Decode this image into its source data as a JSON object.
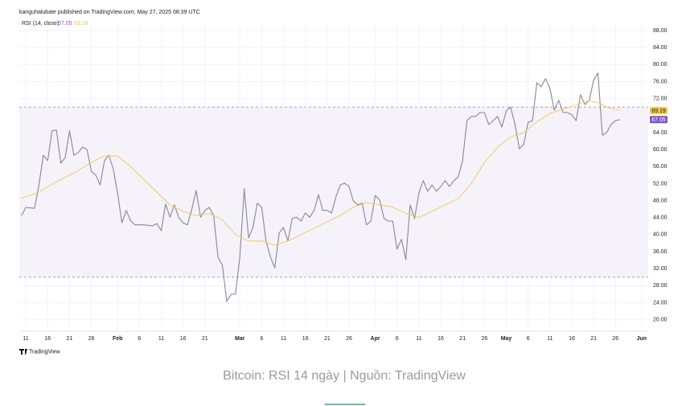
{
  "header": "kanguhalubate published on TradingView.com, May 27, 2025 08:39 UTC",
  "logo": "TradingView",
  "caption": "Bitcoin: RSI 14 ngày | Nguồn: TradingView",
  "chart_data": {
    "type": "line",
    "indicator": "RSI (14, close)",
    "xlim": [
      9.5,
      153.5
    ],
    "ylim": [
      17.3,
      89.5
    ],
    "levels": [
      70,
      30
    ],
    "grid": true,
    "xticks": [
      {
        "value": 11,
        "label": "11"
      },
      {
        "value": 16,
        "label": "16"
      },
      {
        "value": 21,
        "label": "21"
      },
      {
        "value": 26,
        "label": "26"
      },
      {
        "value": 32,
        "label": "Feb"
      },
      {
        "value": 37,
        "label": "6"
      },
      {
        "value": 42,
        "label": "11"
      },
      {
        "value": 47,
        "label": "16"
      },
      {
        "value": 52,
        "label": "21"
      },
      {
        "value": 60,
        "label": "Mar"
      },
      {
        "value": 65,
        "label": "6"
      },
      {
        "value": 70,
        "label": "11"
      },
      {
        "value": 75,
        "label": "16"
      },
      {
        "value": 80,
        "label": "21"
      },
      {
        "value": 85,
        "label": "26"
      },
      {
        "value": 91,
        "label": "Apr"
      },
      {
        "value": 96,
        "label": "6"
      },
      {
        "value": 101,
        "label": "11"
      },
      {
        "value": 106,
        "label": "16"
      },
      {
        "value": 111,
        "label": "21"
      },
      {
        "value": 116,
        "label": "26"
      },
      {
        "value": 121,
        "label": "May"
      },
      {
        "value": 126,
        "label": "6"
      },
      {
        "value": 131,
        "label": "11"
      },
      {
        "value": 136,
        "label": "16"
      },
      {
        "value": 141,
        "label": "21"
      },
      {
        "value": 146,
        "label": "26"
      },
      {
        "value": 152,
        "label": "Jun"
      }
    ],
    "yticks": [
      {
        "value": 20,
        "label": "20.00"
      },
      {
        "value": 24,
        "label": "24.00"
      },
      {
        "value": 28,
        "label": "28.00"
      },
      {
        "value": 32,
        "label": "32.00"
      },
      {
        "value": 36,
        "label": "36.00"
      },
      {
        "value": 40,
        "label": "40.00"
      },
      {
        "value": 44,
        "label": "44.00"
      },
      {
        "value": 48,
        "label": "48.00"
      },
      {
        "value": 52,
        "label": "52.00"
      },
      {
        "value": 56,
        "label": "56.00"
      },
      {
        "value": 60,
        "label": "60.00"
      },
      {
        "value": 64,
        "label": "64.00"
      },
      {
        "value": 72,
        "label": "72.00"
      },
      {
        "value": 76,
        "label": "76.00"
      },
      {
        "value": 80,
        "label": "80.00"
      },
      {
        "value": 84,
        "label": "84.00"
      },
      {
        "value": 88,
        "label": "88.00"
      }
    ],
    "series": [
      {
        "color": "#8a8599",
        "x": [
          10,
          11,
          13,
          14,
          15,
          16,
          17,
          18,
          19,
          20,
          21,
          22,
          23,
          24,
          25,
          26,
          27,
          28,
          29,
          30,
          31,
          32,
          33,
          34,
          35,
          36,
          38,
          40,
          41,
          42,
          43,
          44,
          45,
          46,
          47,
          48,
          49,
          50,
          51,
          52,
          53,
          54,
          55,
          56,
          57,
          58,
          59,
          60,
          61,
          62,
          63,
          64,
          65,
          66,
          67,
          68,
          69,
          70,
          71,
          72,
          73,
          74,
          75,
          76,
          77,
          78,
          79,
          80,
          81,
          82,
          83,
          84,
          85,
          86,
          87,
          88,
          89,
          90,
          91,
          92,
          93,
          94,
          95,
          96,
          97,
          98,
          99,
          100,
          101,
          102,
          103,
          104,
          105,
          106,
          107,
          108,
          109,
          110,
          111,
          112,
          113,
          114,
          115,
          116,
          117,
          118,
          119,
          120,
          121,
          122,
          123,
          124,
          125,
          126,
          127,
          128,
          129,
          130,
          131,
          132,
          133,
          134,
          135,
          136,
          137,
          138,
          139,
          140,
          141,
          142,
          143,
          144,
          145,
          146,
          147
        ],
        "values": [
          44.5,
          46.4,
          46.2,
          51.7,
          58.7,
          57.4,
          64.4,
          64.6,
          56.8,
          58.1,
          64.4,
          58.7,
          59.3,
          60.6,
          60,
          54.9,
          54,
          51.7,
          57.4,
          58.7,
          55.5,
          49.8,
          42.8,
          45.7,
          43.2,
          42.3,
          42.3,
          42.1,
          42.6,
          40.9,
          47.2,
          44.1,
          47,
          44.1,
          42.8,
          42.3,
          46,
          50.4,
          44.1,
          45.7,
          46.4,
          44.5,
          34.7,
          32.8,
          24.3,
          26,
          26,
          34.7,
          50.8,
          39.2,
          41.7,
          47.4,
          46.4,
          38.5,
          34.7,
          32.2,
          40.4,
          41.7,
          38.5,
          43.8,
          44.1,
          43.2,
          45.1,
          44.1,
          45.7,
          49.4,
          45.7,
          45.7,
          45.1,
          48.9,
          51.7,
          52.1,
          51.3,
          47.9,
          47,
          47.4,
          42.3,
          43.2,
          49.2,
          48.2,
          43.8,
          43.2,
          43.2,
          36.6,
          38.9,
          34.1,
          47,
          43.8,
          49.8,
          52.7,
          50.2,
          51.7,
          50.2,
          51.3,
          52.7,
          51.3,
          52.7,
          53.6,
          57.4,
          66.8,
          67.8,
          67.8,
          68.7,
          68.7,
          65.9,
          66.8,
          67.8,
          65.3,
          69.1,
          70,
          65.9,
          60.2,
          61.2,
          66.4,
          66.8,
          75.7,
          74.8,
          76.7,
          74.4,
          69.3,
          71.6,
          68.7,
          68.7,
          68.2,
          66.8,
          72.9,
          70.6,
          71.6,
          76.3,
          78,
          63.4,
          64,
          65.9,
          66.8,
          67.05
        ]
      },
      {
        "color": "#f2c94c",
        "x": [
          10,
          14,
          18,
          22,
          26,
          29,
          32,
          35,
          38,
          41,
          44,
          47,
          50,
          53,
          56,
          59,
          62,
          65,
          68,
          71,
          74,
          77,
          80,
          83,
          86,
          89,
          92,
          95,
          98,
          101,
          104,
          107,
          110,
          113,
          116,
          119,
          122,
          125,
          128,
          131,
          134,
          137,
          140,
          142,
          144,
          147
        ],
        "values": [
          48.6,
          50,
          52.5,
          54.5,
          57,
          58.5,
          58.5,
          56,
          53,
          50,
          47,
          45.5,
          44.5,
          45,
          43.5,
          40,
          38.5,
          38.5,
          37.5,
          38.5,
          40,
          41.5,
          43,
          44.5,
          46.5,
          47.5,
          47,
          46.5,
          45,
          44,
          45.5,
          47,
          48.5,
          52,
          57,
          60.5,
          63,
          64,
          66.5,
          68.5,
          69.5,
          70.5,
          71.5,
          71,
          70,
          69.19
        ]
      }
    ]
  }
}
